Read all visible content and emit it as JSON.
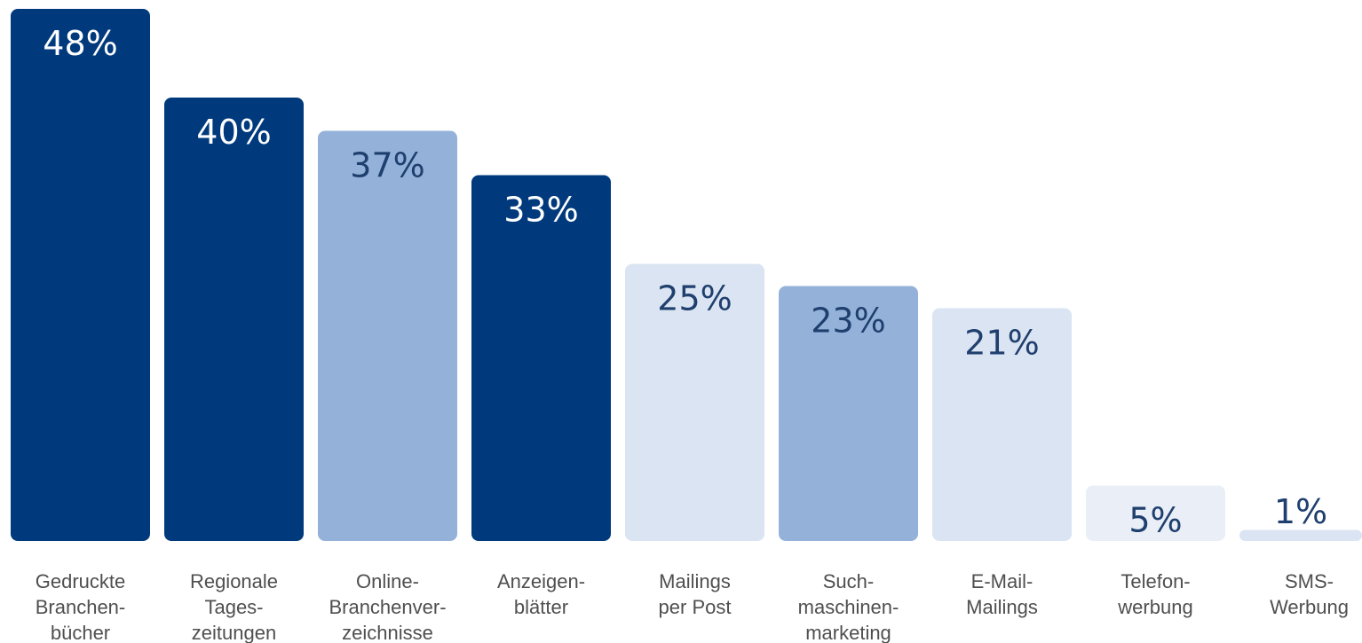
{
  "chart_data": {
    "type": "bar",
    "categories": [
      [
        "Gedruckte",
        "Branchen-",
        "bücher"
      ],
      [
        "Regionale",
        "Tages-",
        "zeitungen"
      ],
      [
        "Online-",
        "Branchenver-",
        "zeichnisse"
      ],
      [
        "Anzeigen-",
        "blätter"
      ],
      [
        "Mailings",
        "per Post"
      ],
      [
        "Such-",
        "maschinen-",
        "marketing"
      ],
      [
        "E-Mail-",
        "Mailings"
      ],
      [
        "Telefon-",
        "werbung"
      ],
      [
        "SMS-",
        "Werbung"
      ]
    ],
    "values": [
      48,
      40,
      37,
      33,
      25,
      23,
      21,
      5,
      1
    ],
    "value_labels": [
      "48%",
      "40%",
      "37%",
      "33%",
      "25%",
      "23%",
      "21%",
      "5%",
      "1%"
    ],
    "ylim": [
      0,
      48
    ],
    "grid": false,
    "title": "",
    "xlabel": "",
    "ylabel": "",
    "colors": [
      "#003a7d",
      "#003a7d",
      "#94b2d9",
      "#003a7d",
      "#dbe4f2",
      "#94b2d9",
      "#dbe4f2",
      "#e9eef7",
      "#dbe4f2"
    ],
    "label_colors": [
      "#ffffff",
      "#ffffff",
      "#1f3f6e",
      "#ffffff",
      "#1f3f6e",
      "#1f3f6e",
      "#1f3f6e",
      "#1f3f6e",
      "#1f3f6e"
    ]
  }
}
